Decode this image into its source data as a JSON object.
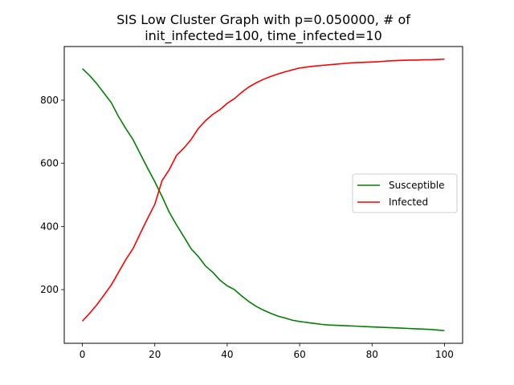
{
  "chart_data": {
    "type": "line",
    "title_lines": [
      "SIS Low Cluster Graph with p=0.050000, # of",
      "init_infected=100, time_infected=10"
    ],
    "xlabel": "",
    "ylabel": "",
    "xlim": [
      -5,
      105
    ],
    "ylim": [
      30,
      970
    ],
    "xticks": [
      0,
      20,
      40,
      60,
      80,
      100
    ],
    "yticks": [
      200,
      400,
      600,
      800
    ],
    "grid": false,
    "legend_position": "center-right",
    "series": [
      {
        "name": "Susceptible",
        "color": "#008000",
        "x": [
          0,
          2,
          4,
          6,
          8,
          10,
          12,
          14,
          16,
          18,
          20,
          22,
          24,
          26,
          28,
          30,
          32,
          34,
          36,
          38,
          40,
          42,
          44,
          46,
          48,
          50,
          52,
          54,
          56,
          58,
          60,
          62,
          64,
          66,
          68,
          70,
          72,
          74,
          76,
          78,
          80,
          82,
          84,
          86,
          88,
          90,
          92,
          94,
          96,
          98,
          100
        ],
        "y": [
          900,
          878,
          852,
          822,
          792,
          748,
          710,
          675,
          630,
          585,
          542,
          495,
          445,
          405,
          368,
          330,
          305,
          275,
          255,
          230,
          212,
          200,
          180,
          162,
          147,
          135,
          125,
          116,
          110,
          103,
          99,
          96,
          93,
          90,
          88,
          87,
          86,
          85,
          84,
          83,
          82,
          81,
          80,
          79,
          78,
          77,
          76,
          75,
          74,
          72,
          70
        ]
      },
      {
        "name": "Infected",
        "color": "#ff0000",
        "x": [
          0,
          2,
          4,
          6,
          8,
          10,
          12,
          14,
          16,
          18,
          20,
          22,
          24,
          26,
          28,
          30,
          32,
          34,
          36,
          38,
          40,
          42,
          44,
          46,
          48,
          50,
          52,
          54,
          56,
          58,
          60,
          62,
          64,
          66,
          68,
          70,
          72,
          74,
          76,
          78,
          80,
          82,
          84,
          86,
          88,
          90,
          92,
          94,
          96,
          98,
          100
        ],
        "y": [
          100,
          125,
          152,
          183,
          215,
          255,
          295,
          330,
          378,
          425,
          470,
          545,
          580,
          625,
          648,
          675,
          710,
          735,
          755,
          770,
          790,
          805,
          825,
          842,
          855,
          866,
          875,
          883,
          890,
          896,
          902,
          905,
          908,
          910,
          912,
          914,
          916,
          918,
          919,
          920,
          921,
          922,
          924,
          925,
          926,
          927,
          927,
          928,
          928,
          929,
          930
        ]
      }
    ]
  }
}
